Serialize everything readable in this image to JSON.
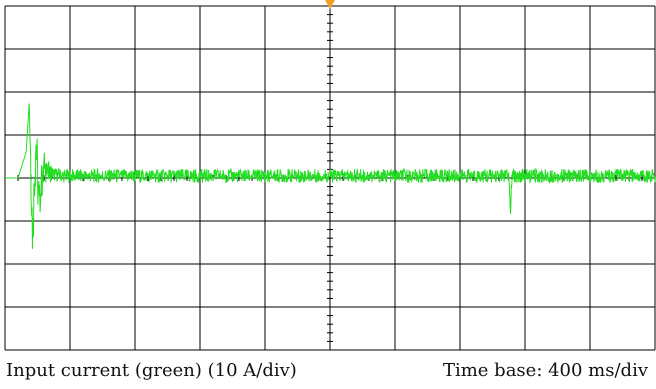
{
  "captions": {
    "left": "Input current (green) (10 A/div)",
    "right": "Time base: 400 ms/div"
  },
  "chart_data": {
    "type": "line",
    "title": "",
    "xlabel": "",
    "ylabel": "",
    "divisions": {
      "x": 10,
      "y": 8
    },
    "x_scale_ms_per_div": 400,
    "y_scale_A_per_div": 10,
    "xlim_ms": [
      0,
      4000
    ],
    "ylim_A": [
      -40,
      40
    ],
    "grid": true,
    "trigger_marker_ms": 2000,
    "series": [
      {
        "color": "#22dd22",
        "x_ms": [
          0,
          80,
          130,
          150,
          170,
          190,
          210,
          240,
          280,
          360,
          1000,
          2000,
          3000,
          3100,
          3110,
          3120,
          3200,
          4000
        ],
        "y_A": [
          0,
          0,
          6,
          18,
          -12,
          8,
          -6,
          3,
          1,
          0.5,
          0.5,
          0.5,
          0.5,
          0.5,
          -8,
          0.5,
          0.5,
          0.5
        ]
      }
    ],
    "colors": {
      "trace": "#22dd22",
      "grid": "#000000",
      "marker": "#f0a020"
    }
  }
}
